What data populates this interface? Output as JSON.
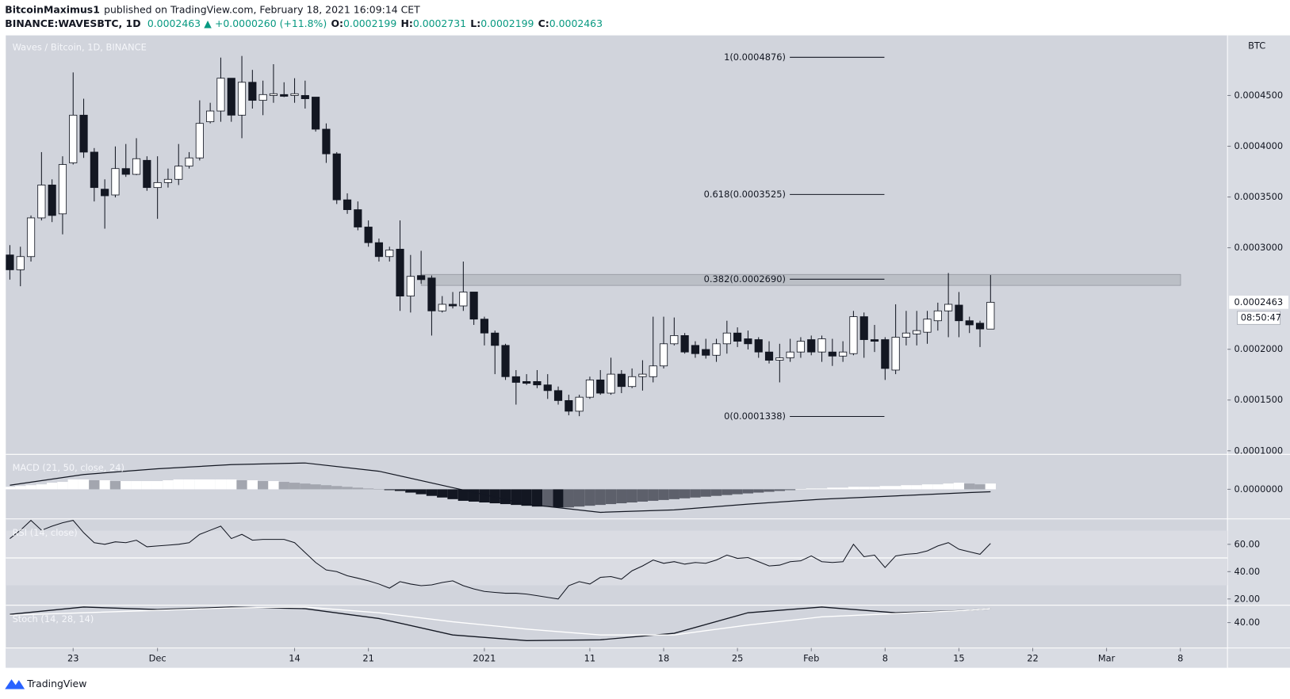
{
  "header": {
    "author": "BitcoinMaximus1",
    "published": "published on TradingView.com, February 18, 2021 16:09:14 CET",
    "symbol": "BINANCE:WAVESBTC, 1D",
    "price": "0.0002463",
    "arrow": "▲",
    "change": "+0.0000260 (+11.8%)",
    "ohlc": [
      {
        "key": "O:",
        "value": "0.0002199"
      },
      {
        "key": "H:",
        "value": "0.0002731"
      },
      {
        "key": "L:",
        "value": "0.0002199"
      },
      {
        "key": "C:",
        "value": "0.0002463"
      }
    ]
  },
  "footer": {
    "brand": "TradingView"
  },
  "chart_data": {
    "type": "candlestick",
    "title": "Waves / Bitcoin, 1D, BINANCE",
    "x": [
      "2020-11-17",
      "2020-11-18",
      "2020-11-19",
      "2020-11-20",
      "2020-11-21",
      "2020-11-22",
      "2020-11-23",
      "2020-11-24",
      "2020-11-25",
      "2020-11-26",
      "2020-11-27",
      "2020-11-28",
      "2020-11-29",
      "2020-11-30",
      "2020-12-01",
      "2020-12-02",
      "2020-12-03",
      "2020-12-04",
      "2020-12-05",
      "2020-12-06",
      "2020-12-07",
      "2020-12-08",
      "2020-12-09",
      "2020-12-10",
      "2020-12-11",
      "2020-12-12",
      "2020-12-13",
      "2020-12-14",
      "2020-12-15",
      "2020-12-16",
      "2020-12-17",
      "2020-12-18",
      "2020-12-19",
      "2020-12-20",
      "2020-12-21",
      "2020-12-22",
      "2020-12-23",
      "2020-12-24",
      "2020-12-25",
      "2020-12-26",
      "2020-12-27",
      "2020-12-28",
      "2020-12-29",
      "2020-12-30",
      "2020-12-31",
      "2021-01-01",
      "2021-01-02",
      "2021-01-03",
      "2021-01-04",
      "2021-01-05",
      "2021-01-06",
      "2021-01-07",
      "2021-01-08",
      "2021-01-09",
      "2021-01-10",
      "2021-01-11",
      "2021-01-12",
      "2021-01-13",
      "2021-01-14",
      "2021-01-15",
      "2021-01-16",
      "2021-01-17",
      "2021-01-18",
      "2021-01-19",
      "2021-01-20",
      "2021-01-21",
      "2021-01-22",
      "2021-01-23",
      "2021-01-24",
      "2021-01-25",
      "2021-01-26",
      "2021-01-27",
      "2021-01-28",
      "2021-01-29",
      "2021-01-30",
      "2021-01-31",
      "2021-02-01",
      "2021-02-02",
      "2021-02-03",
      "2021-02-04",
      "2021-02-05",
      "2021-02-06",
      "2021-02-07",
      "2021-02-08",
      "2021-02-09",
      "2021-02-10",
      "2021-02-11",
      "2021-02-12",
      "2021-02-13",
      "2021-02-14",
      "2021-02-15",
      "2021-02-16",
      "2021-02-17",
      "2021-02-18"
    ],
    "open": [
      0.0002929,
      0.0002783,
      0.0002913,
      0.0003294,
      0.0003618,
      0.0003334,
      0.0003836,
      0.0004306,
      0.0003942,
      0.0003577,
      0.000352,
      0.000378,
      0.0003723,
      0.0003861,
      0.0003593,
      0.0003642,
      0.0003674,
      0.0003804,
      0.0003885,
      0.0004241,
      0.0004347,
      0.000467,
      0.0004306,
      0.000463,
      0.0004452,
      0.00045,
      0.0004509,
      0.00045,
      0.00045,
      0.0004484,
      0.0004168,
      0.0003925,
      0.0003472,
      0.0003375,
      0.0003204,
      0.000305,
      0.0002913,
      0.0002986,
      0.0002524,
      0.0002726,
      0.0002702,
      0.0002378,
      0.0002443,
      0.0002427,
      0.0002564,
      0.0002297,
      0.000216,
      0.0002038,
      0.000173,
      0.0001682,
      0.0001682,
      0.0001649,
      0.0001593,
      0.0001495,
      0.000139,
      0.0001528,
      0.0001698,
      0.0001568,
      0.0001755,
      0.0001633,
      0.000173,
      0.000173,
      0.0001836,
      0.0002054,
      0.0002135,
      0.0002038,
      0.0001998,
      0.0001941,
      0.0002054,
      0.000216,
      0.0002103,
      0.0002095,
      0.0001973,
      0.0001892,
      0.0001916,
      0.0001973,
      0.0002095,
      0.0001973,
      0.0001973,
      0.0001933,
      0.0001957,
      0.0002321,
      0.0002095,
      0.0002095,
      0.0001795,
      0.0002119,
      0.0002151,
      0.0002168,
      0.0002281,
      0.0002378,
      0.0002435,
      0.0002281,
      0.0002257,
      0.0002199
    ],
    "high": [
      0.0003026,
      0.000301,
      0.0003318,
      0.0003942,
      0.0003674,
      0.0003901,
      0.0004727,
      0.0004468,
      0.0003982,
      0.0003674,
      0.0003998,
      0.0004022,
      0.0004079,
      0.0003901,
      0.0003901,
      0.000378,
      0.0004022,
      0.0003942,
      0.0004452,
      0.0004428,
      0.0004873,
      0.000467,
      0.0004889,
      0.0004752,
      0.0004646,
      0.0004808,
      0.000463,
      0.000467,
      0.0004646,
      0.0004484,
      0.0004225,
      0.0003942,
      0.0003536,
      0.0003456,
      0.0003269,
      0.0003091,
      0.000301,
      0.0003269,
      0.0002929,
      0.000297,
      0.0002727,
      0.0002524,
      0.0002564,
      0.0002864,
      0.0002564,
      0.0002321,
      0.0002184,
      0.0002054,
      0.0001795,
      0.0001755,
      0.0001795,
      0.0001755,
      0.0001633,
      0.0001552,
      0.0001552,
      0.000173,
      0.0001795,
      0.0001917,
      0.0001795,
      0.0001811,
      0.0001892,
      0.0002321,
      0.0002321,
      0.0002313,
      0.000216,
      0.0002079,
      0.0002103,
      0.0002103,
      0.0002281,
      0.0002216,
      0.0002184,
      0.0002119,
      0.0002079,
      0.0002054,
      0.0002103,
      0.0002119,
      0.0002135,
      0.0002135,
      0.0002103,
      0.0002079,
      0.0002378,
      0.0002362,
      0.000224,
      0.0002119,
      0.0002443,
      0.0002378,
      0.0002378,
      0.0002378,
      0.0002459,
      0.0002751,
      0.0002564,
      0.0002321,
      0.0002281,
      0.0002731
    ],
    "low": [
      0.0002686,
      0.0002621,
      0.0002864,
      0.0003269,
      0.0003253,
      0.0003132,
      0.000382,
      0.0003885,
      0.0003456,
      0.0003188,
      0.0003496,
      0.0003698,
      0.0003715,
      0.0003561,
      0.0003285,
      0.0003593,
      0.0003618,
      0.000378,
      0.000386,
      0.0004225,
      0.0004241,
      0.0004241,
      0.0004079,
      0.0004371,
      0.0004306,
      0.0004428,
      0.0004484,
      0.0004428,
      0.0004371,
      0.0004144,
      0.0003836,
      0.0003431,
      0.0003334,
      0.0003172,
      0.000301,
      0.0002864,
      0.0002864,
      0.0002378,
      0.0002362,
      0.0002646,
      0.0002135,
      0.0002362,
      0.0002402,
      0.0002378,
      0.000224,
      0.0002038,
      0.0001755,
      0.0001698,
      0.0001455,
      0.0001649,
      0.0001617,
      0.0001511,
      0.0001455,
      0.000135,
      0.0001341,
      0.0001511,
      0.0001552,
      0.0001552,
      0.0001568,
      0.0001617,
      0.0001593,
      0.0001674,
      0.0001811,
      0.0002038,
      0.0001957,
      0.0001916,
      0.0001908,
      0.0001876,
      0.0001957,
      0.0002022,
      0.0001998,
      0.0001916,
      0.000186,
      0.0001674,
      0.0001876,
      0.0001916,
      0.0001941,
      0.0001876,
      0.0001836,
      0.0001876,
      0.0001941,
      0.0001916,
      0.0001973,
      0.0001698,
      0.0001755,
      0.0002038,
      0.0002038,
      0.0002054,
      0.0002184,
      0.0002119,
      0.0002119,
      0.000216,
      0.0002022,
      0.0002199
    ],
    "close": [
      0.0002783,
      0.0002913,
      0.0003294,
      0.0003618,
      0.0003318,
      0.000382,
      0.0004306,
      0.0003942,
      0.0003593,
      0.0003512,
      0.000378,
      0.0003723,
      0.0003877,
      0.0003593,
      0.0003642,
      0.0003674,
      0.0003804,
      0.0003885,
      0.0004225,
      0.0004347,
      0.000467,
      0.0004306,
      0.000463,
      0.0004452,
      0.0004509,
      0.0004517,
      0.0004492,
      0.0004517,
      0.0004468,
      0.0004168,
      0.0003925,
      0.0003472,
      0.0003375,
      0.0003204,
      0.000305,
      0.0002913,
      0.0002978,
      0.0002524,
      0.0002718,
      0.0002686,
      0.0002378,
      0.0002443,
      0.0002427,
      0.0002564,
      0.0002297,
      0.000216,
      0.0002038,
      0.000173,
      0.0001674,
      0.0001665,
      0.0001649,
      0.0001593,
      0.0001495,
      0.000139,
      0.0001528,
      0.0001698,
      0.0001568,
      0.0001755,
      0.0001633,
      0.000173,
      0.0001755,
      0.0001836,
      0.0002054,
      0.0002135,
      0.0001973,
      0.0001957,
      0.0001941,
      0.0002054,
      0.000216,
      0.0002079,
      0.0002054,
      0.0001973,
      0.0001892,
      0.0001916,
      0.0001973,
      0.0002079,
      0.0001973,
      0.0002103,
      0.0001933,
      0.0001973,
      0.0002321,
      0.0002095,
      0.0002079,
      0.0001811,
      0.0002119,
      0.000216,
      0.0002184,
      0.0002297,
      0.0002378,
      0.0002443,
      0.0002281,
      0.000224,
      0.00022,
      0.0002463
    ],
    "up_color": "#ffffff",
    "down_color": "#131722",
    "ylim": [
      9.69e-05,
      0.0005092
    ],
    "yticks": [
      {
        "value": 0.00045,
        "label": "0.0004500"
      },
      {
        "value": 0.0004,
        "label": "0.0004000"
      },
      {
        "value": 0.00035,
        "label": "0.0003500"
      },
      {
        "value": 0.0003,
        "label": "0.0003000"
      },
      {
        "value": 0.0002,
        "label": "0.0002000"
      },
      {
        "value": 0.00015,
        "label": "0.0001500"
      },
      {
        "value": 0.0001,
        "label": "0.0001000"
      }
    ],
    "currency": "BTC",
    "last_price": {
      "value": 0.0002463,
      "label": "0.0002463"
    },
    "countdown": "08:50:47",
    "xlim": [
      "2020-11-17",
      "2021-03-12"
    ],
    "xticks": [
      {
        "value": "2020-11-23",
        "label": "23"
      },
      {
        "value": "2020-12-01",
        "label": "Dec"
      },
      {
        "value": "2020-12-14",
        "label": "14"
      },
      {
        "value": "2020-12-21",
        "label": "21"
      },
      {
        "value": "2021-01-01",
        "label": "2021"
      },
      {
        "value": "2021-01-11",
        "label": "11"
      },
      {
        "value": "2021-01-18",
        "label": "18"
      },
      {
        "value": "2021-01-25",
        "label": "25"
      },
      {
        "value": "2021-02-01",
        "label": "Feb"
      },
      {
        "value": "2021-02-08",
        "label": "8"
      },
      {
        "value": "2021-02-15",
        "label": "15"
      },
      {
        "value": "2021-02-22",
        "label": "22"
      },
      {
        "value": "2021-03-01",
        "label": "Mar"
      },
      {
        "value": "2021-03-08",
        "label": "8"
      }
    ],
    "fib_levels": [
      {
        "value": 0.0004876,
        "label": "1(0.0004876)"
      },
      {
        "value": 0.0003525,
        "label": "0.618(0.0003525)"
      },
      {
        "value": 0.000269,
        "label": "0.382(0.0002690)"
      },
      {
        "value": 0.0001338,
        "label": "0(0.0001338)"
      }
    ],
    "zone": [
      0.0002629,
      0.0002737
    ],
    "panes": [
      {
        "type": "macd",
        "title": "MACD (21, 50, close, 24)",
        "histogram": [
          3e-07,
          4e-07,
          5e-07,
          6e-07,
          8e-07,
          9e-07,
          1.2e-06,
          1.2e-06,
          1.1e-06,
          1.1e-06,
          1e-06,
          1e-06,
          1e-06,
          1e-06,
          1e-06,
          1.1e-06,
          1.2e-06,
          1.2e-06,
          1.2e-06,
          1.2e-06,
          1.2e-06,
          1.2e-06,
          1.1e-06,
          1.1e-06,
          1e-06,
          1e-06,
          9e-07,
          8e-07,
          7e-07,
          6e-07,
          5e-07,
          4e-07,
          3e-07,
          2e-07,
          1e-07,
          0,
          -1e-07,
          -2e-07,
          -4e-07,
          -6e-07,
          -8e-07,
          -1e-06,
          -1.2e-06,
          -1.4e-06,
          -1.5e-06,
          -1.6e-06,
          -1.7e-06,
          -1.8e-06,
          -1.9e-06,
          -2e-06,
          -2.1e-06,
          -2.1e-06,
          -2.2e-06,
          -2.2e-06,
          -2.1e-06,
          -2e-06,
          -1.9e-06,
          -1.8e-06,
          -1.7e-06,
          -1.6e-06,
          -1.5e-06,
          -1.4e-06,
          -1.3e-06,
          -1.2e-06,
          -1.1e-06,
          -1e-06,
          -9e-07,
          -8e-07,
          -7e-07,
          -6e-07,
          -5e-07,
          -4e-07,
          -3e-07,
          -2e-07,
          -1e-07,
          0,
          1e-07,
          1e-07,
          2e-07,
          2e-07,
          3e-07,
          3e-07,
          3e-07,
          4e-07,
          4e-07,
          5e-07,
          5e-07,
          6e-07,
          6e-07,
          7e-07,
          8e-07,
          7e-07,
          6e-07,
          7e-07
        ],
        "x": [
          "2020-11-17",
          "2020-11-24",
          "2020-12-01",
          "2020-12-08",
          "2020-12-15",
          "2020-12-22",
          "2020-12-29",
          "2021-01-05",
          "2021-01-12",
          "2021-01-19",
          "2021-01-26",
          "2021-02-02",
          "2021-02-09",
          "2021-02-16",
          "2021-02-18"
        ],
        "line": [
          5e-07,
          1.8e-06,
          2.5e-06,
          3e-06,
          3.2e-06,
          2.2e-06,
          2e-07,
          -1.8e-06,
          -2.8e-06,
          -2.5e-06,
          -1.8e-06,
          -1.2e-06,
          -8e-07,
          -4e-07,
          -3e-07
        ],
        "line_color": "#131722",
        "ylim": [
          -3.5e-06,
          4.2e-06
        ],
        "yticks": [
          {
            "value": 0,
            "label": "0.0000000"
          }
        ]
      },
      {
        "type": "rsi",
        "title": "RSI (14, close)",
        "values": [
          64.2,
          70.3,
          77.5,
          70.3,
          73.3,
          75.8,
          77.5,
          68.5,
          61.2,
          60,
          61.8,
          61.2,
          63,
          58.2,
          58.8,
          59.4,
          60,
          61.2,
          67.3,
          70.3,
          73.3,
          64.2,
          67.3,
          63,
          63.6,
          63.6,
          63.6,
          61.2,
          53.9,
          46.7,
          41.2,
          40,
          37,
          35.2,
          33.3,
          30.9,
          27.9,
          32.7,
          30.9,
          29.7,
          30.3,
          32.1,
          33.3,
          29.7,
          27.3,
          25.5,
          24.8,
          24.2,
          24.2,
          23.6,
          22.4,
          21.2,
          20,
          29.7,
          32.7,
          30.9,
          35.8,
          36.4,
          34.5,
          40.6,
          44.2,
          48.5,
          46.1,
          47.3,
          45.5,
          46.7,
          46.1,
          48.5,
          52.1,
          49.7,
          50.3,
          47.3,
          44.2,
          44.8,
          47.3,
          47.9,
          51.5,
          47.3,
          46.7,
          47.3,
          60,
          50.9,
          52.1,
          43,
          51.5,
          52.7,
          53.3,
          55.2,
          58.8,
          61.2,
          56.4,
          54.5,
          52.7,
          60.6
        ],
        "color": "#131722",
        "band": [
          30,
          70
        ],
        "midline": 50,
        "ylim": [
          16,
          78
        ],
        "yticks": [
          {
            "value": 60,
            "label": "60.00"
          },
          {
            "value": 40,
            "label": "40.00"
          },
          {
            "value": 20,
            "label": "20.00"
          }
        ]
      },
      {
        "type": "stoch",
        "title": "Stoch (14, 28, 14)",
        "x": [
          "2020-11-17",
          "2020-11-24",
          "2020-12-01",
          "2020-12-08",
          "2020-12-15",
          "2020-12-22",
          "2020-12-29",
          "2021-01-05",
          "2021-01-12",
          "2021-01-19",
          "2021-01-26",
          "2021-02-02",
          "2021-02-09",
          "2021-02-16",
          "2021-02-18"
        ],
        "series": [
          {
            "color": "#131722",
            "values": [
              52.9,
              64.5,
              60.6,
              64.5,
              61.9,
              46.5,
              20.6,
              11.6,
              12.9,
              23.2,
              55.5,
              64.5,
              55.5,
              59.4,
              61.9
            ]
          },
          {
            "color": "#ffffff",
            "values": [
              51.6,
              55.5,
              59.4,
              63.2,
              64.5,
              55.5,
              41.3,
              29.7,
              20.6,
              20.6,
              36.1,
              49,
              54.2,
              59.4,
              61.9
            ]
          }
        ],
        "ylim": [
          0,
          66
        ],
        "yticks": [
          {
            "value": 40,
            "label": "40.00"
          }
        ]
      }
    ]
  }
}
